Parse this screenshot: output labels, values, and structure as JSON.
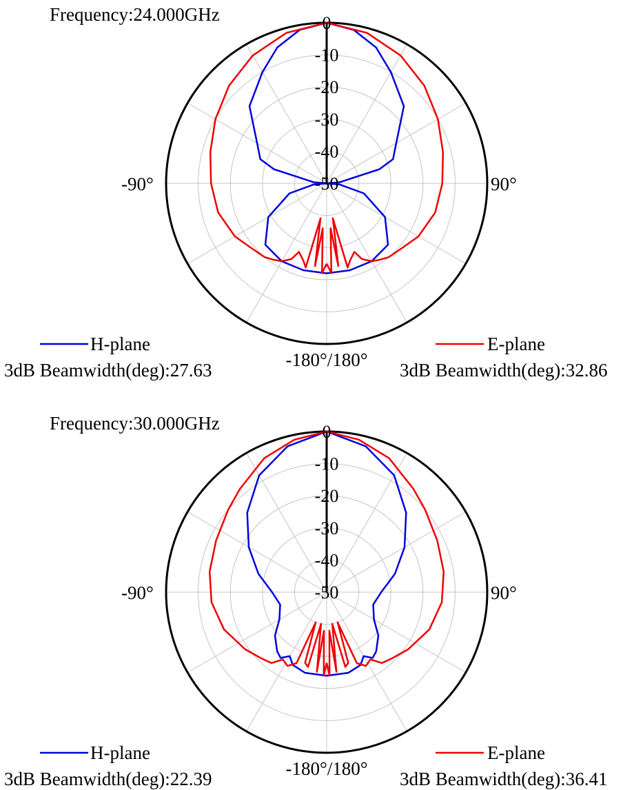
{
  "chart_data": [
    {
      "type": "polar-line",
      "title": "Frequency:24.000GHz",
      "r_range": [
        -50,
        0
      ],
      "radial_ticks": [
        "0",
        "-10",
        "-20",
        "-30",
        "-40",
        "-50"
      ],
      "angle_labels": {
        "left": "-90°",
        "right": "90°",
        "bottom": "-180°/180°"
      },
      "grid": true,
      "series": [
        {
          "name": "H-plane",
          "color": "#0000dd",
          "beamwidth_label": "3dB Beamwidth(deg):27.63",
          "points": [
            [
              -180,
              -22
            ],
            [
              -165,
              -22
            ],
            [
              -150,
              -22
            ],
            [
              -135,
              -23
            ],
            [
              -120,
              -29
            ],
            [
              -105,
              -38
            ],
            [
              -95,
              -46
            ],
            [
              -90,
              -50
            ],
            [
              -85,
              -46
            ],
            [
              -75,
              -33
            ],
            [
              -70,
              -28
            ],
            [
              -60,
              -25
            ],
            [
              -45,
              -16
            ],
            [
              -30,
              -10
            ],
            [
              -20,
              -5
            ],
            [
              -10,
              -1.5
            ],
            [
              0,
              0
            ],
            [
              10,
              -1.5
            ],
            [
              20,
              -5
            ],
            [
              30,
              -10
            ],
            [
              45,
              -16
            ],
            [
              60,
              -25
            ],
            [
              70,
              -28
            ],
            [
              75,
              -33
            ],
            [
              85,
              -46
            ],
            [
              90,
              -50
            ],
            [
              95,
              -46
            ],
            [
              105,
              -38
            ],
            [
              120,
              -29
            ],
            [
              135,
              -23
            ],
            [
              150,
              -22
            ],
            [
              165,
              -22
            ],
            [
              180,
              -22
            ]
          ]
        },
        {
          "name": "E-plane",
          "color": "#ee0000",
          "beamwidth_label": "3dB Beamwidth(deg):32.86",
          "points": [
            [
              -180,
              -25
            ],
            [
              -177,
              -22
            ],
            [
              -175,
              -36
            ],
            [
              -172,
              -24
            ],
            [
              -170,
              -39
            ],
            [
              -166,
              -23
            ],
            [
              -163,
              -25
            ],
            [
              -158,
              -27
            ],
            [
              -155,
              -24
            ],
            [
              -150,
              -22
            ],
            [
              -145,
              -21
            ],
            [
              -140,
              -20
            ],
            [
              -130,
              -19
            ],
            [
              -120,
              -17
            ],
            [
              -105,
              -15
            ],
            [
              -90,
              -14
            ],
            [
              -75,
              -12.5
            ],
            [
              -60,
              -10
            ],
            [
              -45,
              -7
            ],
            [
              -30,
              -4
            ],
            [
              -15,
              -1.5
            ],
            [
              0,
              0
            ],
            [
              15,
              -1.5
            ],
            [
              30,
              -4
            ],
            [
              45,
              -7
            ],
            [
              60,
              -10
            ],
            [
              75,
              -12.5
            ],
            [
              90,
              -14
            ],
            [
              105,
              -15
            ],
            [
              120,
              -17
            ],
            [
              130,
              -19
            ],
            [
              140,
              -20
            ],
            [
              145,
              -21
            ],
            [
              150,
              -22
            ],
            [
              155,
              -24
            ],
            [
              158,
              -27
            ],
            [
              163,
              -25
            ],
            [
              166,
              -23
            ],
            [
              170,
              -39
            ],
            [
              172,
              -24
            ],
            [
              175,
              -36
            ],
            [
              177,
              -22
            ],
            [
              180,
              -25
            ]
          ]
        }
      ]
    },
    {
      "type": "polar-line",
      "title": "Frequency:30.000GHz",
      "r_range": [
        -50,
        0
      ],
      "radial_ticks": [
        "0",
        "-10",
        "-20",
        "-30",
        "-40",
        "-50"
      ],
      "angle_labels": {
        "left": "-90°",
        "right": "90°",
        "bottom": "-180°/180°"
      },
      "grid": true,
      "series": [
        {
          "name": "H-plane",
          "color": "#0000dd",
          "beamwidth_label": "3dB Beamwidth(deg):22.39",
          "points": [
            [
              -180,
              -24
            ],
            [
              -165,
              -24
            ],
            [
              -155,
              -25
            ],
            [
              -150,
              -27
            ],
            [
              -145,
              -25
            ],
            [
              -140,
              -26
            ],
            [
              -130,
              -29
            ],
            [
              -120,
              -33
            ],
            [
              -105,
              -35
            ],
            [
              -90,
              -33
            ],
            [
              -75,
              -28
            ],
            [
              -60,
              -22
            ],
            [
              -45,
              -15
            ],
            [
              -30,
              -8
            ],
            [
              -15,
              -3
            ],
            [
              0,
              0
            ],
            [
              15,
              -3
            ],
            [
              30,
              -8
            ],
            [
              45,
              -15
            ],
            [
              60,
              -22
            ],
            [
              75,
              -28
            ],
            [
              90,
              -33
            ],
            [
              105,
              -35
            ],
            [
              120,
              -33
            ],
            [
              130,
              -29
            ],
            [
              140,
              -26
            ],
            [
              145,
              -25
            ],
            [
              150,
              -27
            ],
            [
              155,
              -25
            ],
            [
              165,
              -24
            ],
            [
              180,
              -24
            ]
          ]
        },
        {
          "name": "E-plane",
          "color": "#ee0000",
          "beamwidth_label": "3dB Beamwidth(deg):36.41",
          "points": [
            [
              -180,
              -28
            ],
            [
              -178,
              -24
            ],
            [
              -176,
              -38
            ],
            [
              -173,
              -25
            ],
            [
              -170,
              -40
            ],
            [
              -166,
              -26
            ],
            [
              -163,
              -27
            ],
            [
              -160,
              -40
            ],
            [
              -157,
              -26
            ],
            [
              -152,
              -24
            ],
            [
              -147,
              -25
            ],
            [
              -142,
              -22
            ],
            [
              -135,
              -21
            ],
            [
              -125,
              -19
            ],
            [
              -110,
              -16
            ],
            [
              -95,
              -14
            ],
            [
              -80,
              -13
            ],
            [
              -65,
              -12
            ],
            [
              -50,
              -10
            ],
            [
              -40,
              -8
            ],
            [
              -25,
              -4
            ],
            [
              -12,
              -1.5
            ],
            [
              0,
              0
            ],
            [
              12,
              -1.5
            ],
            [
              25,
              -4
            ],
            [
              40,
              -8
            ],
            [
              50,
              -10
            ],
            [
              65,
              -12
            ],
            [
              80,
              -13
            ],
            [
              95,
              -14
            ],
            [
              110,
              -16
            ],
            [
              125,
              -19
            ],
            [
              135,
              -21
            ],
            [
              142,
              -22
            ],
            [
              147,
              -25
            ],
            [
              152,
              -24
            ],
            [
              157,
              -26
            ],
            [
              160,
              -40
            ],
            [
              163,
              -27
            ],
            [
              166,
              -26
            ],
            [
              170,
              -40
            ],
            [
              173,
              -25
            ],
            [
              176,
              -38
            ],
            [
              178,
              -24
            ],
            [
              180,
              -28
            ]
          ]
        }
      ]
    }
  ]
}
